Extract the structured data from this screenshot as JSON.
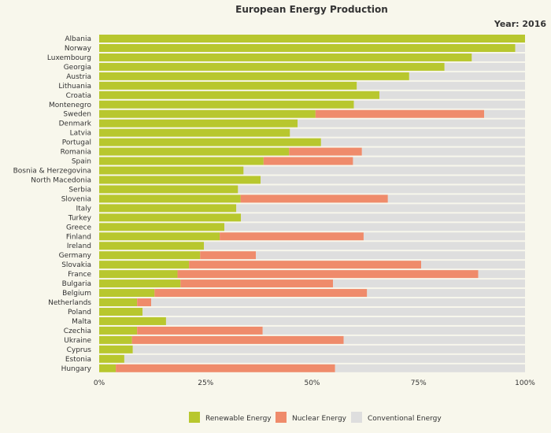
{
  "chart_data": {
    "type": "bar",
    "orientation": "horizontal",
    "stacked": true,
    "title": "European Energy Production",
    "subtitle": "Year: 2016",
    "xlim": [
      0,
      100
    ],
    "x_ticks": [
      "0%",
      "25%",
      "50%",
      "75%",
      "100%"
    ],
    "x_tick_values": [
      0,
      25,
      50,
      75,
      100
    ],
    "legend_position": "bottom",
    "categories": [
      "Albania",
      "Norway",
      "Luxembourg",
      "Georgia",
      "Austria",
      "Lithuania",
      "Croatia",
      "Montenegro",
      "Sweden",
      "Denmark",
      "Latvia",
      "Portugal",
      "Romania",
      "Spain",
      "Bosnia & Herzegovina",
      "North Macedonia",
      "Serbia",
      "Slovenia",
      "Italy",
      "Turkey",
      "Greece",
      "Finland",
      "Ireland",
      "Germany",
      "Slovakia",
      "France",
      "Bulgaria",
      "Belgium",
      "Netherlands",
      "Poland",
      "Malta",
      "Czechia",
      "Ukraine",
      "Cyprus",
      "Estonia",
      "Hungary"
    ],
    "series": [
      {
        "name": "Renewable Energy",
        "color": "#b8c72e",
        "values": [
          100,
          97.7,
          87.5,
          81.1,
          72.8,
          60.5,
          65.8,
          59.8,
          50.8,
          46.6,
          44.8,
          52.1,
          44.6,
          38.6,
          33.9,
          37.9,
          32.6,
          33.2,
          32.2,
          33.3,
          29.4,
          28.3,
          24.6,
          23.7,
          21.1,
          18.4,
          19.1,
          13.0,
          8.9,
          10.2,
          15.7,
          8.9,
          7.7,
          7.9,
          5.9,
          3.9
        ],
        "labels": []
      },
      {
        "name": "Nuclear Energy",
        "color": "#ef8b6b",
        "values": [
          0,
          0,
          0,
          0,
          0,
          0,
          0,
          0,
          39.6,
          0,
          0,
          0,
          17.1,
          21.0,
          0,
          0,
          0,
          34.6,
          0,
          0,
          0,
          33.8,
          0,
          13.1,
          54.5,
          70.6,
          35.8,
          49.9,
          3.3,
          0,
          0,
          29.5,
          49.7,
          0,
          0,
          51.5
        ],
        "labels": []
      },
      {
        "name": "Conventional Energy",
        "color": "#dedede",
        "values": [
          0,
          2.3,
          12.5,
          18.9,
          27.2,
          39.5,
          34.2,
          40.2,
          9.6,
          53.4,
          55.2,
          47.9,
          38.3,
          40.4,
          66.1,
          62.1,
          67.4,
          32.2,
          67.8,
          66.7,
          70.6,
          37.9,
          75.4,
          63.2,
          24.4,
          11.0,
          45.1,
          37.1,
          87.8,
          89.8,
          84.3,
          61.6,
          42.6,
          92.1,
          94.1,
          44.6
        ],
        "labels": []
      }
    ]
  }
}
